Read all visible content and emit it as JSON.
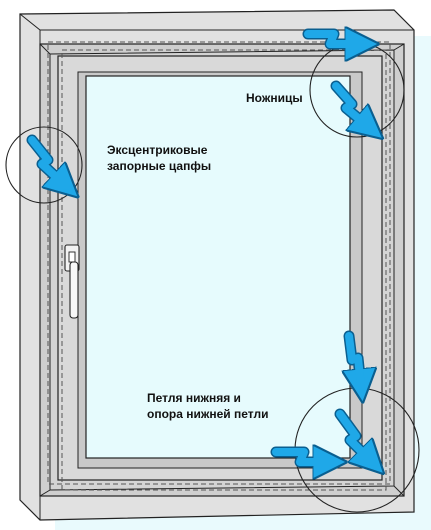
{
  "colors": {
    "background_panel": "#e9fafd",
    "wall_outer": "#e1e1e1",
    "frame": "#cfcfcf",
    "sash": "#d9d9d9",
    "glass": "#e6fbfd",
    "arrow_fill": "#1fa8e8",
    "arrow_stroke": "#0a5f90",
    "line": "#222222"
  },
  "icons": {
    "arrow": "blue-double-arrow-icon",
    "handle": "window-handle-icon"
  },
  "labels": {
    "scissors": "Ножницы",
    "eccentric_line1": "Эксцентриковые",
    "eccentric_line2": "запорные цапфы",
    "hinge_line1": "Петля нижняя и",
    "hinge_line2": "опора нижней петли"
  }
}
